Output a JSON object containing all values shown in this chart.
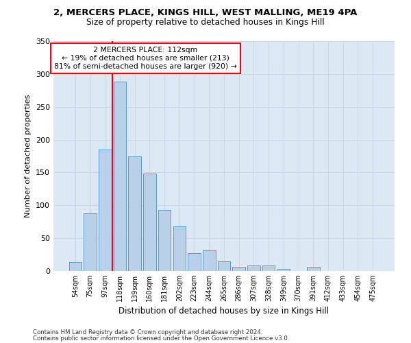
{
  "title_line1": "2, MERCERS PLACE, KINGS HILL, WEST MALLING, ME19 4PA",
  "title_line2": "Size of property relative to detached houses in Kings Hill",
  "xlabel": "Distribution of detached houses by size in Kings Hill",
  "ylabel": "Number of detached properties",
  "categories": [
    "54sqm",
    "75sqm",
    "97sqm",
    "118sqm",
    "139sqm",
    "160sqm",
    "181sqm",
    "202sqm",
    "223sqm",
    "244sqm",
    "265sqm",
    "286sqm",
    "307sqm",
    "328sqm",
    "349sqm",
    "370sqm",
    "391sqm",
    "412sqm",
    "433sqm",
    "454sqm",
    "475sqm"
  ],
  "values": [
    14,
    88,
    185,
    288,
    175,
    148,
    93,
    68,
    27,
    31,
    15,
    6,
    8,
    8,
    3,
    0,
    6,
    0,
    0,
    0,
    0
  ],
  "bar_color": "#b8d0e8",
  "bar_edge_color": "#5b9bd5",
  "grid_color": "#c8d8e8",
  "background_color": "#dce8f4",
  "annotation_text": "2 MERCERS PLACE: 112sqm\n← 19% of detached houses are smaller (213)\n81% of semi-detached houses are larger (920) →",
  "red_line_x": 2.5,
  "ylim": [
    0,
    350
  ],
  "yticks": [
    0,
    50,
    100,
    150,
    200,
    250,
    300,
    350
  ],
  "footer_line1": "Contains HM Land Registry data © Crown copyright and database right 2024.",
  "footer_line2": "Contains public sector information licensed under the Open Government Licence v3.0."
}
